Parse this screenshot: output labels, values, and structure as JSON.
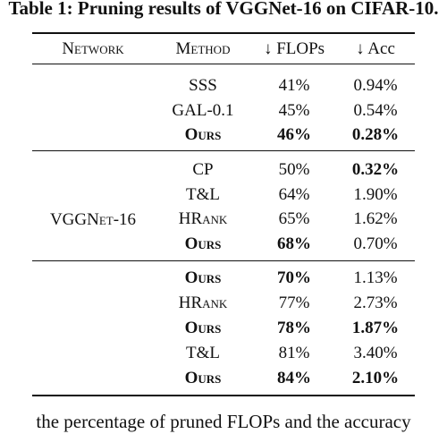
{
  "caption": "Table 1: Pruning results of VGGNet-16 on CIFAR-10.",
  "headers": {
    "network": "Network",
    "method": "Method",
    "flops": "↓ FLOPs",
    "acc": "↓ Acc"
  },
  "network_name": "VGGNet-16",
  "groups": [
    {
      "rows": [
        {
          "method": "SSS",
          "flops": "41%",
          "acc": "0.94%",
          "bold_method": false,
          "bold_flops": false,
          "bold_acc": false
        },
        {
          "method": "GAL-0.1",
          "flops": "45%",
          "acc": "0.54%",
          "bold_method": false,
          "bold_flops": false,
          "bold_acc": false
        },
        {
          "method": "Ours",
          "flops": "46%",
          "acc": "0.28%",
          "bold_method": true,
          "bold_flops": true,
          "bold_acc": true
        }
      ]
    },
    {
      "rows": [
        {
          "method": "CP",
          "flops": "50%",
          "acc": "0.32%",
          "bold_method": false,
          "bold_flops": false,
          "bold_acc": true
        },
        {
          "method": "T&L",
          "flops": "64%",
          "acc": "1.90%",
          "bold_method": false,
          "bold_flops": false,
          "bold_acc": false
        },
        {
          "method": "HRank",
          "flops": "65%",
          "acc": "1.62%",
          "bold_method": false,
          "bold_flops": false,
          "bold_acc": false
        },
        {
          "method": "Ours",
          "flops": "68%",
          "acc": "0.70%",
          "bold_method": true,
          "bold_flops": true,
          "bold_acc": false
        }
      ]
    },
    {
      "rows": [
        {
          "method": "Ours",
          "flops": "70%",
          "acc": "1.13%",
          "bold_method": true,
          "bold_flops": true,
          "bold_acc": false
        },
        {
          "method": "HRank",
          "flops": "77%",
          "acc": "2.73%",
          "bold_method": false,
          "bold_flops": false,
          "bold_acc": false
        },
        {
          "method": "Ours",
          "flops": "78%",
          "acc": "1.87%",
          "bold_method": true,
          "bold_flops": true,
          "bold_acc": true
        },
        {
          "method": "T&L",
          "flops": "81%",
          "acc": "3.40%",
          "bold_method": false,
          "bold_flops": false,
          "bold_acc": false
        },
        {
          "method": "Ours",
          "flops": "84%",
          "acc": "2.10%",
          "bold_method": true,
          "bold_flops": true,
          "bold_acc": true
        }
      ]
    }
  ],
  "note": "the percentage of pruned FLOPs and the accuracy"
}
